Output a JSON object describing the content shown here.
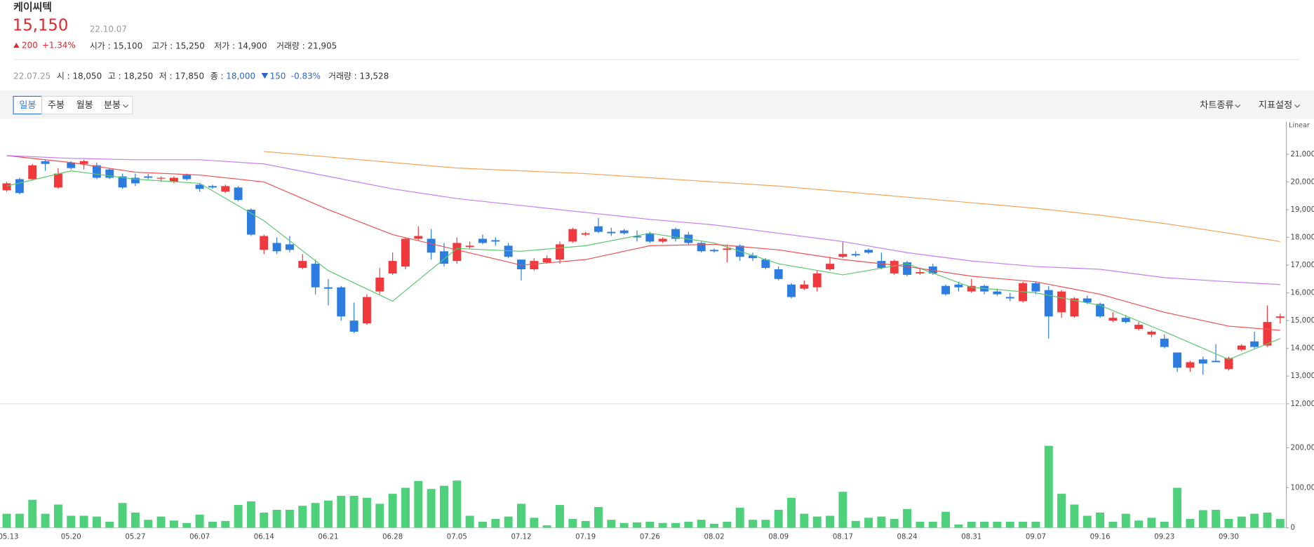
{
  "header": {
    "name": "케이씨텍",
    "price": "15,150",
    "date": "22.10.07",
    "change": "200",
    "change_pct": "+1.34%",
    "stats": [
      {
        "label": "시가 : ",
        "value": "15,100"
      },
      {
        "label": "고가 : ",
        "value": "15,250"
      },
      {
        "label": "저가 : ",
        "value": "14,900"
      },
      {
        "label": "거래량 : ",
        "value": "21,905"
      }
    ]
  },
  "snapshot": {
    "date": "22.07.25",
    "stats": [
      {
        "label": "시 : ",
        "value": "18,050"
      },
      {
        "label": "고 : ",
        "value": "18,250"
      },
      {
        "label": "저 : ",
        "value": "17,850"
      },
      {
        "label": "종 : ",
        "value": "18,000"
      }
    ],
    "change": "150",
    "change_pct": "-0.83%",
    "volume_label": "거래량 : ",
    "volume": "13,528"
  },
  "toolbar": {
    "periods": [
      "일봉",
      "주봉",
      "월봉",
      "분봉"
    ],
    "menus": [
      "차트종류",
      "지표설정"
    ]
  },
  "chart_data": {
    "type": "candlestick",
    "scale_label": "Linear",
    "up_color": "#f0393d",
    "down_color": "#2d7de0",
    "volume_color": "#4fd07a",
    "categories": [
      "05.13",
      null,
      null,
      null,
      null,
      "05.20",
      null,
      null,
      null,
      null,
      "05.27",
      null,
      null,
      null,
      null,
      "06.07",
      null,
      null,
      null,
      null,
      "06.14",
      null,
      null,
      null,
      null,
      "06.21",
      null,
      null,
      null,
      null,
      "06.28",
      null,
      null,
      null,
      null,
      "07.05",
      null,
      null,
      null,
      null,
      "07.12",
      null,
      null,
      null,
      null,
      "07.19",
      null,
      null,
      null,
      null,
      "07.26",
      null,
      null,
      null,
      null,
      "08.02",
      null,
      null,
      null,
      null,
      "08.09",
      null,
      null,
      null,
      null,
      "08.17",
      null,
      null,
      null,
      null,
      "08.24",
      null,
      null,
      null,
      null,
      "08.31",
      null,
      null,
      null,
      null,
      "09.07",
      null,
      null,
      null,
      null,
      "09.16",
      null,
      null,
      null,
      null,
      "09.23",
      null,
      null,
      null,
      null,
      "09.30",
      null,
      null,
      null,
      null
    ],
    "open": [
      19700,
      20100,
      20100,
      20750,
      19800,
      20700,
      20650,
      20600,
      20450,
      20200,
      20150,
      20200,
      20150,
      20000,
      20250,
      19900,
      19850,
      19650,
      19800,
      19000,
      17550,
      17800,
      17750,
      16900,
      17050,
      16200,
      16200,
      15000,
      14900,
      16050,
      16700,
      16950,
      17950,
      17950,
      17500,
      17150,
      17650,
      17950,
      17900,
      17700,
      17200,
      16850,
      17100,
      17200,
      17850,
      18100,
      18400,
      18200,
      18250,
      18050,
      18150,
      17850,
      18300,
      18100,
      17800,
      17550,
      17550,
      17700,
      17350,
      17200,
      16850,
      16300,
      16150,
      16200,
      16850,
      17300,
      17400,
      17550,
      17150,
      16700,
      17100,
      16700,
      16950,
      16250,
      16300,
      16050,
      16250,
      16050,
      15850,
      15700,
      16350,
      16100,
      15300,
      15150,
      15800,
      15600,
      15000,
      15100,
      14700,
      14500,
      14350,
      13850,
      13300,
      13600,
      13550,
      13250,
      13950,
      14250,
      14100,
      15100
    ],
    "high": [
      20000,
      20150,
      20650,
      20800,
      20500,
      20750,
      20800,
      20700,
      20500,
      20300,
      20300,
      20300,
      20200,
      20200,
      20300,
      19950,
      19900,
      19900,
      19850,
      19050,
      18100,
      18000,
      18050,
      17400,
      17200,
      16500,
      16250,
      15650,
      15950,
      16900,
      17450,
      18000,
      18400,
      18300,
      17800,
      18000,
      17850,
      18100,
      18000,
      17800,
      17200,
      17250,
      17350,
      17850,
      18350,
      18200,
      18700,
      18350,
      18300,
      18250,
      18200,
      18000,
      18350,
      18200,
      17850,
      17600,
      17750,
      17750,
      17450,
      17250,
      16950,
      16350,
      16450,
      16800,
      17300,
      17850,
      17500,
      17600,
      17450,
      17200,
      17150,
      16900,
      17050,
      16300,
      16400,
      16500,
      16300,
      16150,
      16000,
      16400,
      16400,
      16250,
      16100,
      15850,
      15900,
      15650,
      15300,
      15200,
      14950,
      14650,
      14500,
      13850,
      13550,
      13700,
      14150,
      13700,
      14150,
      14600,
      15550,
      15250
    ],
    "low": [
      19650,
      19550,
      20050,
      20400,
      19750,
      20450,
      20450,
      20100,
      20100,
      19750,
      19850,
      20100,
      20000,
      19950,
      20050,
      19650,
      19750,
      19600,
      19300,
      18050,
      17400,
      17400,
      17450,
      16850,
      15950,
      15550,
      15000,
      14550,
      14850,
      15950,
      16650,
      16850,
      17900,
      17200,
      16950,
      17050,
      17600,
      17750,
      17700,
      17250,
      16450,
      16800,
      17050,
      17050,
      17800,
      18050,
      18150,
      18050,
      18100,
      17850,
      17800,
      17800,
      17850,
      17750,
      17450,
      17450,
      17100,
      17150,
      17150,
      16850,
      16450,
      15800,
      16100,
      16050,
      16800,
      17250,
      17300,
      17400,
      16850,
      16650,
      16600,
      16650,
      16650,
      15900,
      16050,
      16000,
      15950,
      15900,
      15700,
      15650,
      15950,
      14350,
      15100,
      15100,
      15600,
      15100,
      14950,
      14900,
      14650,
      14400,
      14000,
      13150,
      13150,
      13050,
      13500,
      13200,
      13900,
      14000,
      14050,
      14900
    ],
    "close": [
      19950,
      19600,
      20600,
      20650,
      20300,
      20500,
      20750,
      20150,
      20150,
      19800,
      19950,
      20150,
      20150,
      20150,
      20100,
      19750,
      19800,
      19850,
      19350,
      18100,
      18050,
      17500,
      17550,
      17150,
      16200,
      16150,
      15150,
      14600,
      15850,
      16550,
      17150,
      17950,
      18050,
      17450,
      17050,
      17800,
      17700,
      17800,
      17850,
      17300,
      16850,
      17150,
      17250,
      17750,
      18300,
      18150,
      18200,
      18150,
      18150,
      18000,
      17850,
      17950,
      17950,
      17800,
      17500,
      17500,
      17600,
      17300,
      17250,
      16900,
      16500,
      15850,
      16300,
      16700,
      17050,
      17400,
      17350,
      17450,
      16900,
      17150,
      16650,
      16750,
      16700,
      15950,
      16200,
      16250,
      16050,
      15950,
      15800,
      16350,
      16050,
      15150,
      16050,
      15800,
      15650,
      15150,
      15100,
      14950,
      14850,
      14600,
      14050,
      13300,
      13500,
      13450,
      13500,
      13650,
      14100,
      14050,
      14950,
      15150
    ],
    "volume": [
      35000,
      35000,
      70000,
      35000,
      58000,
      30000,
      30000,
      28000,
      15000,
      62000,
      38000,
      20000,
      28000,
      18000,
      12000,
      33000,
      15000,
      17000,
      57000,
      66000,
      38000,
      45000,
      45000,
      55000,
      62000,
      68000,
      80000,
      80000,
      75000,
      60000,
      85000,
      100000,
      117000,
      97000,
      105000,
      118000,
      30000,
      15000,
      22000,
      28000,
      60000,
      25000,
      6000,
      57000,
      22000,
      17000,
      52000,
      20000,
      12000,
      13528,
      15000,
      12000,
      12000,
      15000,
      20000,
      10000,
      15000,
      50000,
      20000,
      20000,
      45000,
      75000,
      35000,
      28000,
      30000,
      90000,
      17000,
      25000,
      28000,
      22000,
      47000,
      15000,
      15000,
      40000,
      8000,
      15000,
      15000,
      15000,
      15000,
      15000,
      15000,
      205000,
      85000,
      58000,
      30000,
      38000,
      15000,
      35000,
      18000,
      25000,
      15000,
      100000,
      22000,
      44000,
      45000,
      22000,
      28000,
      35000,
      38000,
      21905
    ],
    "ma_x": [
      0,
      5,
      10,
      15,
      20,
      25,
      30,
      35,
      40,
      45,
      50,
      55,
      60,
      65,
      70,
      75,
      80,
      85,
      90,
      95,
      99
    ],
    "ma_series": [
      {
        "color": "#5cc86c",
        "values": [
          19850,
          20400,
          20100,
          19950,
          18600,
          16800,
          15700,
          17600,
          17500,
          17700,
          18150,
          17800,
          17050,
          16650,
          17050,
          16200,
          16000,
          15550,
          14600,
          13600,
          14350
        ]
      },
      {
        "color": "#f05050",
        "values": [
          20950,
          20700,
          20350,
          20250,
          20000,
          19000,
          18100,
          17550,
          17000,
          17200,
          17700,
          17750,
          17550,
          17200,
          16950,
          16600,
          16400,
          15950,
          15300,
          14800,
          14650
        ]
      },
      {
        "color": "#c67ef2",
        "values": [
          20950,
          20850,
          20800,
          20800,
          20650,
          20200,
          19750,
          19400,
          19150,
          18900,
          18650,
          18450,
          18150,
          17850,
          17450,
          17150,
          16950,
          16850,
          16550,
          16400,
          16300
        ]
      },
      {
        "color": "#f2a55a",
        "values": [
          null,
          null,
          null,
          null,
          21100,
          20900,
          20700,
          20500,
          20400,
          20300,
          20150,
          20000,
          19850,
          19650,
          19450,
          19250,
          19050,
          18800,
          18500,
          18150,
          17850
        ]
      }
    ],
    "ylim": [
      12000,
      22180
    ],
    "yticks": [
      {
        "value": 12000,
        "label": "12,000"
      },
      {
        "value": 13000,
        "label": "13,000"
      },
      {
        "value": 14000,
        "label": "14,000"
      },
      {
        "value": 15000,
        "label": "15,000"
      },
      {
        "value": 16000,
        "label": "16,000"
      },
      {
        "value": 17000,
        "label": "17,000"
      },
      {
        "value": 18000,
        "label": "18,000"
      },
      {
        "value": 19000,
        "label": "19,000"
      },
      {
        "value": 20000,
        "label": "20,000"
      },
      {
        "value": 21000,
        "label": "21,000"
      }
    ],
    "volume_ylim": [
      0,
      310000
    ],
    "volume_ticks": [
      0,
      {
        "value": 100000,
        "label": "100,000"
      },
      {
        "value": 200000,
        "label": "200,000"
      }
    ]
  }
}
